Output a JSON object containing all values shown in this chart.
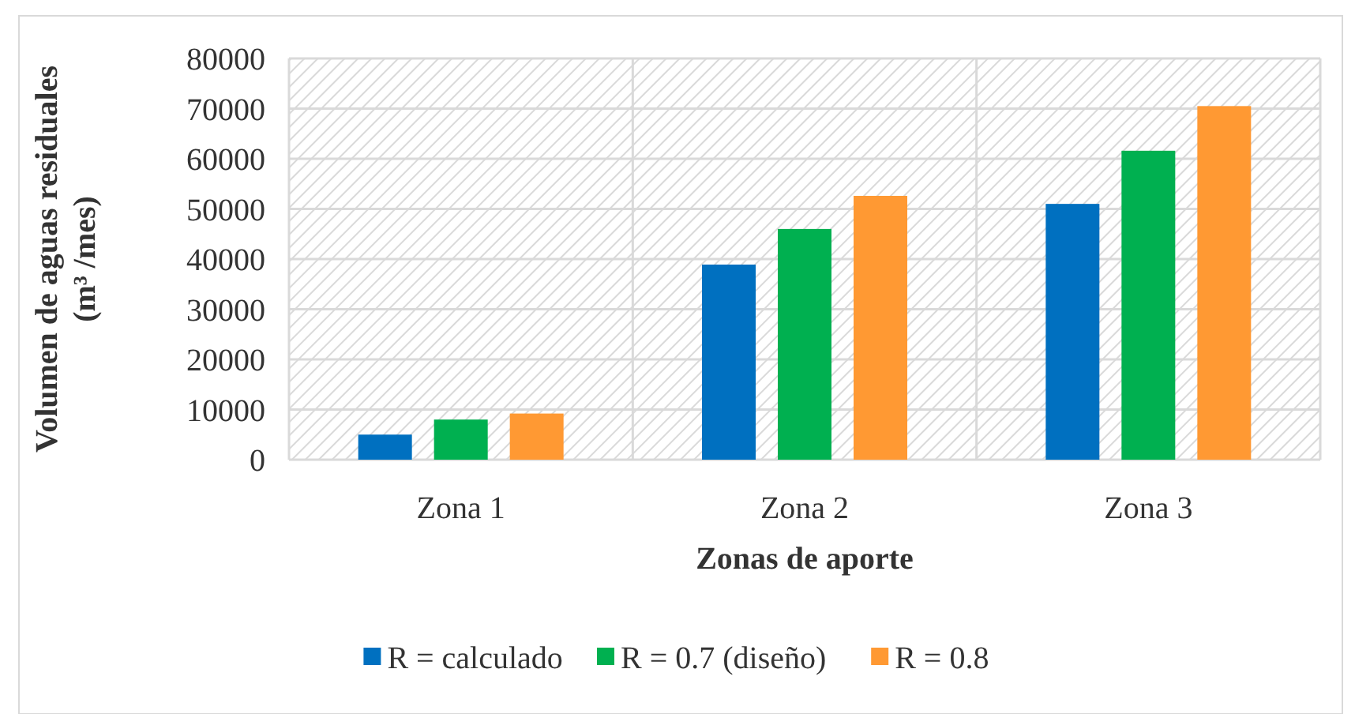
{
  "chart_data": {
    "type": "bar",
    "xlabel": "Zonas de aporte",
    "ylabel": "Volumen de aguas residuales\n(m³ /mes)",
    "categories": [
      "Zona 1",
      "Zona 2",
      "Zona 3"
    ],
    "series": [
      {
        "name": "R = calculado",
        "color": "#0070c0",
        "values": [
          5000,
          38900,
          51000
        ]
      },
      {
        "name": "R = 0.7 (diseño)",
        "color": "#00b050",
        "values": [
          8000,
          46000,
          61600
        ]
      },
      {
        "name": "R = 0.8",
        "color": "#ff9933",
        "values": [
          9200,
          52600,
          70500
        ]
      }
    ],
    "ylim": [
      0,
      80000
    ],
    "yticks": [
      0,
      10000,
      20000,
      30000,
      40000,
      50000,
      60000,
      70000,
      80000
    ],
    "grid": true,
    "legend": "bottom"
  }
}
